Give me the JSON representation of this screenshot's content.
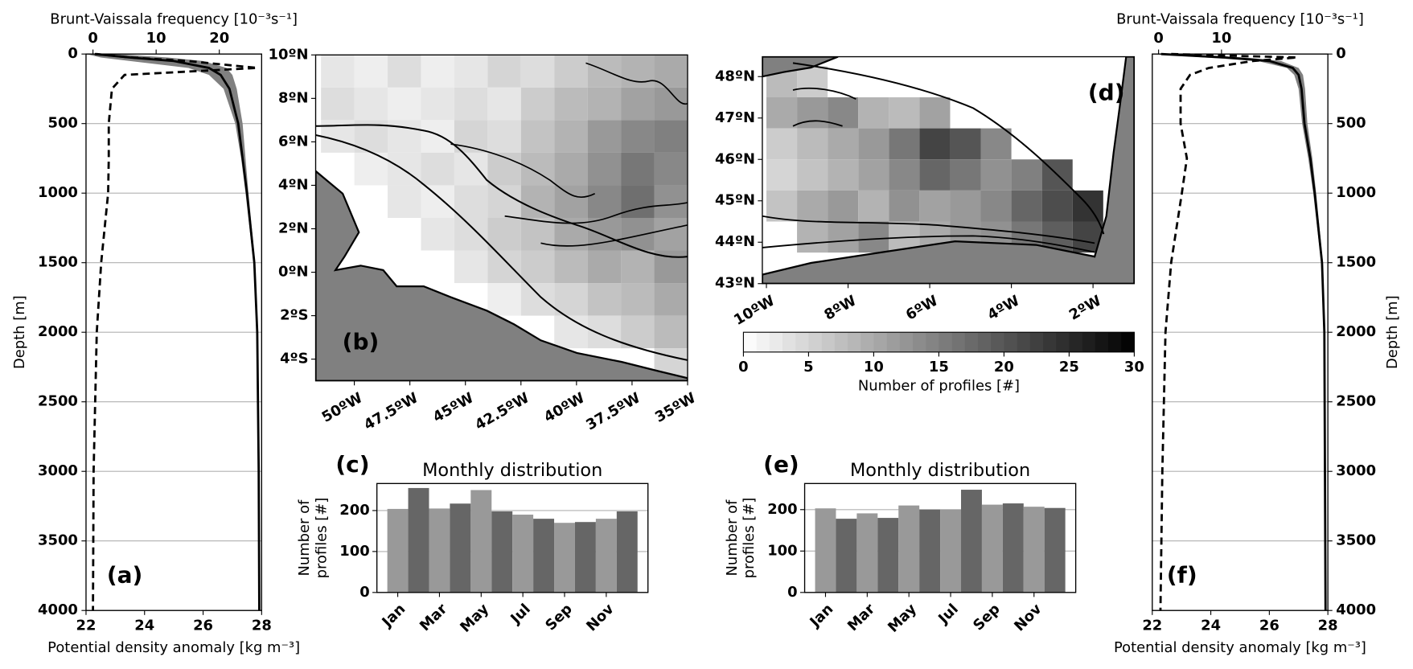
{
  "chart_data": [
    {
      "type": "profile",
      "panel_label": "(a)",
      "xlabel": "Potential density anomaly [kg  m⁻³]",
      "x2label": "Brunt-Vaissala frequency [10⁻³s⁻¹]",
      "ylabel": "Depth [m]",
      "xlim": [
        22,
        28
      ],
      "xticks": [
        22,
        24,
        26,
        28
      ],
      "x2lim": [
        -1.1,
        26.7
      ],
      "x2ticks": [
        0,
        10,
        20
      ],
      "ylim": [
        0,
        4000
      ],
      "y_inverted": true,
      "yticks": [
        0,
        500,
        1000,
        1500,
        2000,
        2500,
        3000,
        3500,
        4000
      ],
      "grid": true,
      "yaxis_side": "left",
      "y": [
        0,
        25,
        50,
        100,
        150,
        250,
        500,
        750,
        1000,
        1500,
        2000,
        3000,
        4000
      ],
      "band": {
        "color": "#808080",
        "lower": [
          22.0,
          22.5,
          23.5,
          25.5,
          26.2,
          26.7,
          27.1,
          27.3,
          27.45,
          27.72,
          27.83,
          27.88,
          27.9
        ],
        "upper": [
          23.0,
          24.8,
          26.0,
          26.8,
          27.0,
          27.15,
          27.35,
          27.45,
          27.55,
          27.78,
          27.87,
          27.92,
          27.94
        ]
      },
      "series": [
        {
          "color": "#000000",
          "linestyle": "solid",
          "values": [
            22.3,
            23.5,
            25.0,
            26.2,
            26.6,
            26.9,
            27.2,
            27.35,
            27.5,
            27.75,
            27.85,
            27.9,
            27.92
          ]
        },
        {
          "color": "#000000",
          "linestyle": "dashed",
          "axis": "x2",
          "values": [
            0.5,
            6,
            15,
            26,
            5,
            3,
            2.5,
            2.5,
            2.4,
            1.3,
            0.6,
            0.1,
            0
          ]
        }
      ]
    },
    {
      "type": "heatmap",
      "panel_label": "(b)",
      "xlim": [
        -51.74,
        -35
      ],
      "ylim": [
        -5,
        10
      ],
      "xticks": [
        {
          "value": -50,
          "label": "50ºW"
        },
        {
          "value": -47.5,
          "label": "47.5ºW"
        },
        {
          "value": -45,
          "label": "45ºW"
        },
        {
          "value": -42.5,
          "label": "42.5ºW"
        },
        {
          "value": -40,
          "label": "40ºW"
        },
        {
          "value": -37.5,
          "label": "37.5ºW"
        },
        {
          "value": -35,
          "label": "35ºW"
        }
      ],
      "yticks": [
        {
          "value": 10,
          "label": "10ºN"
        },
        {
          "value": 8,
          "label": "8ºN"
        },
        {
          "value": 6,
          "label": "6ºN"
        },
        {
          "value": 4,
          "label": "4ºN"
        },
        {
          "value": 2,
          "label": "2ºN"
        },
        {
          "value": 0,
          "label": "0ºN"
        },
        {
          "value": -2,
          "label": "2ºS"
        },
        {
          "value": -4,
          "label": "4ºS"
        }
      ],
      "xbins": [
        -51.5,
        -50,
        -48.5,
        -47,
        -45.5,
        -44,
        -42.5,
        -41,
        -39.5,
        -38,
        -36.5,
        -35
      ],
      "ybins": [
        10,
        8.5,
        7,
        5.5,
        4,
        2.5,
        1,
        -0.5,
        -2,
        -3.5,
        -5
      ],
      "values": [
        [
          3,
          2,
          4,
          2,
          3,
          5,
          4,
          6,
          8,
          9,
          10
        ],
        [
          4,
          3,
          2,
          3,
          4,
          3,
          6,
          8,
          9,
          11,
          12
        ],
        [
          3,
          4,
          3,
          2,
          5,
          4,
          7,
          9,
          12,
          14,
          15
        ],
        [
          null,
          2,
          3,
          4,
          3,
          6,
          8,
          10,
          13,
          16,
          14
        ],
        [
          null,
          null,
          3,
          2,
          4,
          5,
          9,
          11,
          14,
          17,
          13
        ],
        [
          null,
          null,
          null,
          3,
          4,
          6,
          7,
          10,
          12,
          13,
          11
        ],
        [
          null,
          null,
          null,
          null,
          3,
          5,
          6,
          8,
          10,
          9,
          12
        ],
        [
          null,
          null,
          null,
          null,
          null,
          2,
          4,
          5,
          7,
          8,
          10
        ],
        [
          null,
          null,
          null,
          null,
          null,
          null,
          null,
          3,
          4,
          6,
          8
        ],
        [
          null,
          null,
          null,
          null,
          null,
          null,
          null,
          null,
          null,
          null,
          5
        ]
      ]
    },
    {
      "type": "heatmap",
      "panel_label": "(d)",
      "xlim": [
        -10.1,
        -0.99
      ],
      "ylim": [
        43,
        48.48
      ],
      "xticks": [
        {
          "value": -10,
          "label": "10ºW"
        },
        {
          "value": -8,
          "label": "8ºW"
        },
        {
          "value": -6,
          "label": "6ºW"
        },
        {
          "value": -4,
          "label": "4ºW"
        },
        {
          "value": -2,
          "label": "2ºW"
        }
      ],
      "yticks": [
        {
          "value": 48,
          "label": "48ºN"
        },
        {
          "value": 47,
          "label": "47ºN"
        },
        {
          "value": 46,
          "label": "46ºN"
        },
        {
          "value": 45,
          "label": "45ºN"
        },
        {
          "value": 44,
          "label": "44ºN"
        },
        {
          "value": 43,
          "label": "43ºN"
        }
      ],
      "xbins": [
        -10,
        -9.25,
        -8.5,
        -7.75,
        -7,
        -6.25,
        -5.5,
        -4.75,
        -4,
        -3.25,
        -2.5,
        -1.75,
        -1
      ],
      "ybins": [
        48.25,
        47.5,
        46.75,
        46,
        45.25,
        44.5,
        43.75
      ],
      "values": [
        [
          8,
          6,
          null,
          null,
          null,
          null,
          null,
          null,
          null,
          null,
          null,
          null
        ],
        [
          10,
          12,
          14,
          9,
          8,
          11,
          null,
          null,
          null,
          null,
          null,
          null
        ],
        [
          6,
          8,
          10,
          12,
          16,
          22,
          20,
          14,
          null,
          null,
          null,
          null
        ],
        [
          5,
          7,
          9,
          11,
          14,
          18,
          16,
          13,
          15,
          20,
          null,
          null
        ],
        [
          7,
          10,
          12,
          9,
          13,
          11,
          12,
          14,
          18,
          21,
          24,
          null
        ],
        [
          null,
          9,
          11,
          14,
          8,
          10,
          12,
          13,
          16,
          19,
          22,
          null
        ]
      ],
      "colorbar": {
        "lim": [
          0,
          30
        ],
        "levels": 30,
        "ticks": [
          0,
          5,
          10,
          15,
          20,
          25,
          30
        ],
        "label": "Number of profiles [#]"
      }
    },
    {
      "type": "bar",
      "panel_label": "(c)",
      "title": "Monthly distribution",
      "ylabel": [
        "Number of",
        "profiles [#]"
      ],
      "categories": [
        "Jan",
        null,
        "Mar",
        null,
        "May",
        null,
        "Jul",
        null,
        "Sep",
        null,
        "Nov",
        null
      ],
      "values": [
        204,
        255,
        205,
        217,
        250,
        198,
        190,
        180,
        170,
        172,
        180,
        198
      ],
      "colors": [
        "#999999",
        "#666666"
      ],
      "ylim": [
        0,
        266
      ],
      "yticks": [
        0,
        100,
        200
      ],
      "grid": true
    },
    {
      "type": "bar",
      "panel_label": "(e)",
      "title": "Monthly distribution",
      "ylabel": [
        "Number of",
        "profiles [#]"
      ],
      "categories": [
        "Jan",
        null,
        "Mar",
        null,
        "May",
        null,
        "Jul",
        null,
        "Sep",
        null,
        "Nov",
        null
      ],
      "values": [
        203,
        178,
        191,
        180,
        210,
        200,
        200,
        248,
        212,
        215,
        207,
        204
      ],
      "colors": [
        "#999999",
        "#666666"
      ],
      "ylim": [
        0,
        263
      ],
      "yticks": [
        0,
        100,
        200
      ],
      "grid": true
    },
    {
      "type": "profile",
      "panel_label": "(f)",
      "xlabel": "Potential density anomaly [kg  m⁻³]",
      "x2label": "Brunt-Vaissala frequency [10⁻³s⁻¹]",
      "ylabel": "Depth [m]",
      "xlim": [
        22,
        28
      ],
      "xticks": [
        22,
        24,
        26,
        28
      ],
      "x2lim": [
        -1,
        26.9
      ],
      "x2ticks": [
        0,
        10
      ],
      "ylim": [
        0,
        4000
      ],
      "y_inverted": true,
      "yticks": [
        0,
        500,
        1000,
        1500,
        2000,
        2500,
        3000,
        3500,
        4000
      ],
      "grid": true,
      "yaxis_side": "right",
      "y": [
        0,
        25,
        50,
        100,
        150,
        250,
        500,
        750,
        1000,
        1500,
        2000,
        3000,
        4000
      ],
      "band": {
        "color": "#808080",
        "lower": [
          22.0,
          23.8,
          25.6,
          26.6,
          26.85,
          27.0,
          27.12,
          27.33,
          27.5,
          27.77,
          27.86,
          27.88,
          27.9
        ],
        "upper": [
          22.8,
          25.2,
          26.4,
          27.0,
          27.15,
          27.22,
          27.3,
          27.47,
          27.6,
          27.83,
          27.9,
          27.92,
          27.94
        ]
      },
      "series": [
        {
          "color": "#000000",
          "linestyle": "solid",
          "values": [
            22.3,
            24.5,
            26.0,
            26.8,
            27.0,
            27.1,
            27.2,
            27.4,
            27.55,
            27.8,
            27.88,
            27.9,
            27.92
          ]
        },
        {
          "color": "#000000",
          "linestyle": "dashed",
          "axis": "x2",
          "values": [
            2,
            22,
            15,
            8,
            5,
            3.5,
            3.5,
            4.5,
            3.7,
            2,
            1.1,
            0.6,
            0.3
          ]
        }
      ]
    }
  ]
}
